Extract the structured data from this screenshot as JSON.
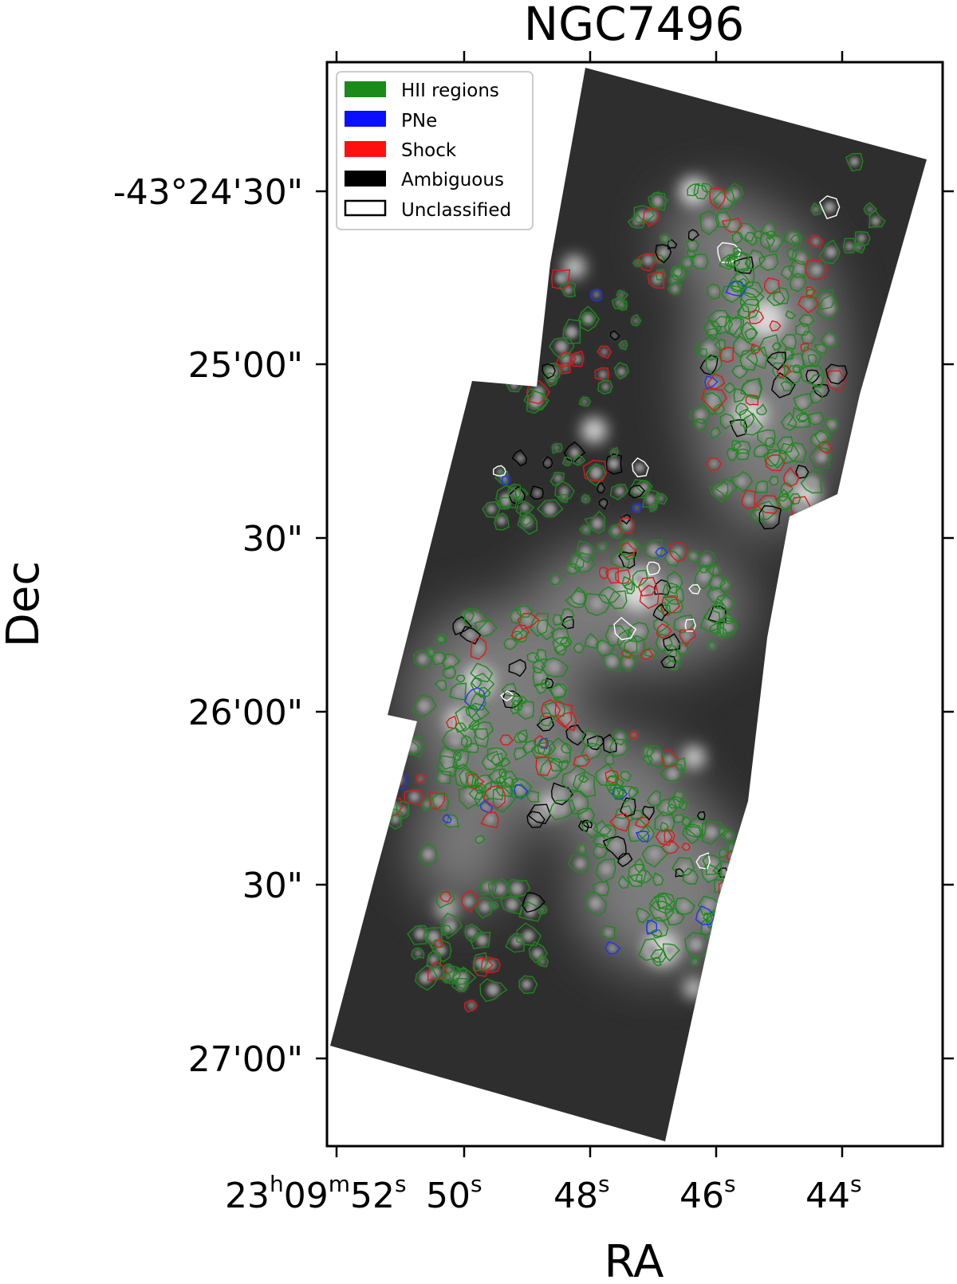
{
  "title": "NGC7496",
  "xlabel": "RA",
  "ylabel": "Dec",
  "dec_ticks": [
    "-43°24'30\"",
    "25'00\"",
    "30\"",
    "26'00\"",
    "30\"",
    "27'00\""
  ],
  "ra_ticks": [
    {
      "hm": "23h09m",
      "s": "52s"
    },
    {
      "s": "50s"
    },
    {
      "s": "48s"
    },
    {
      "s": "46s"
    },
    {
      "s": "44s"
    }
  ],
  "ra_tick_text": [
    {
      "h": "23",
      "hu": "h",
      "m": "09",
      "mu": "m",
      "s": "52",
      "su": "s"
    },
    {
      "s": "50",
      "su": "s"
    },
    {
      "s": "48",
      "su": "s"
    },
    {
      "s": "46",
      "su": "s"
    },
    {
      "s": "44",
      "su": "s"
    }
  ],
  "legend": {
    "placement": "top-left",
    "entries": [
      {
        "label": "HII regions",
        "color": "#1b8a1b"
      },
      {
        "label": "PNe",
        "color": "#0a10ff"
      },
      {
        "label": "Shock",
        "color": "#ff1010"
      },
      {
        "label": "Ambiguous",
        "color": "#000000"
      },
      {
        "label": "Unclassified",
        "color": "#ffffff"
      }
    ]
  },
  "colors": {
    "hii": "#1b8a1b",
    "pne": "#2030ff",
    "shock": "#e01818",
    "ambiguous": "#000000",
    "unclassified": "#ffffff",
    "sky": "#2e2e2e"
  }
}
